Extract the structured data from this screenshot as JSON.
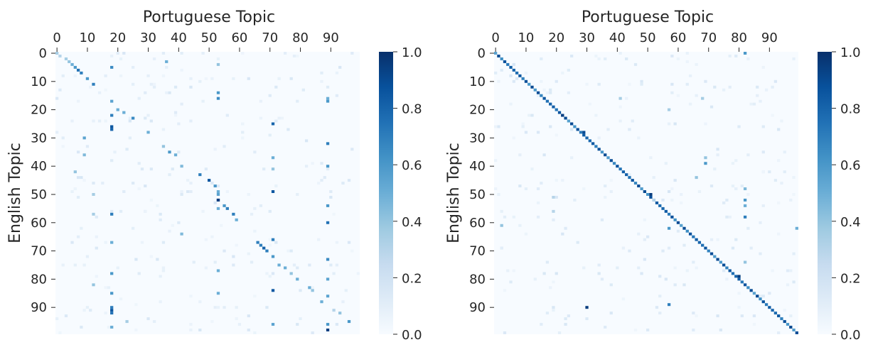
{
  "chart_data": [
    {
      "type": "heatmap",
      "title": "",
      "xlabel": "Portuguese Topic",
      "ylabel": "English Topic",
      "x_ticks": [
        "0",
        "10",
        "20",
        "30",
        "40",
        "50",
        "60",
        "70",
        "80",
        "90"
      ],
      "y_ticks": [
        "0",
        "10",
        "20",
        "30",
        "40",
        "50",
        "60",
        "70",
        "80",
        "90"
      ],
      "grid_size": 100,
      "colorbar": {
        "ticks": [
          "0.0",
          "0.2",
          "0.4",
          "0.6",
          "0.8",
          "1.0"
        ],
        "range": [
          0,
          1
        ]
      },
      "highlighted_cells": [
        [
          0,
          0,
          0.35
        ],
        [
          1,
          1,
          0.3
        ],
        [
          2,
          3,
          0.35
        ],
        [
          3,
          4,
          0.4
        ],
        [
          4,
          5,
          0.5
        ],
        [
          5,
          6,
          0.6
        ],
        [
          6,
          7,
          0.75
        ],
        [
          7,
          8,
          0.7
        ],
        [
          9,
          10,
          0.6
        ],
        [
          11,
          12,
          0.7
        ],
        [
          20,
          20,
          0.5
        ],
        [
          21,
          22,
          0.5
        ],
        [
          23,
          25,
          0.65
        ],
        [
          28,
          30,
          0.5
        ],
        [
          33,
          35,
          0.4
        ],
        [
          35,
          37,
          0.6
        ],
        [
          36,
          39,
          0.5
        ],
        [
          40,
          41,
          0.45
        ],
        [
          43,
          47,
          0.7
        ],
        [
          45,
          50,
          0.85
        ],
        [
          47,
          52,
          0.6
        ],
        [
          49,
          53,
          0.5
        ],
        [
          52,
          53,
          0.95
        ],
        [
          54,
          55,
          0.6
        ],
        [
          55,
          56,
          0.7
        ],
        [
          57,
          58,
          0.7
        ],
        [
          59,
          59,
          0.5
        ],
        [
          67,
          66,
          0.7
        ],
        [
          68,
          67,
          0.7
        ],
        [
          69,
          68,
          0.8
        ],
        [
          70,
          69,
          0.7
        ],
        [
          72,
          71,
          0.6
        ],
        [
          75,
          73,
          0.5
        ],
        [
          76,
          75,
          0.5
        ],
        [
          78,
          77,
          0.4
        ],
        [
          80,
          79,
          0.5
        ],
        [
          83,
          83,
          0.5
        ],
        [
          84,
          84,
          0.4
        ],
        [
          88,
          87,
          0.5
        ],
        [
          91,
          91,
          0.3
        ],
        [
          92,
          93,
          0.4
        ],
        [
          95,
          96,
          0.6
        ],
        [
          5,
          18,
          0.65
        ],
        [
          17,
          18,
          0.55
        ],
        [
          22,
          18,
          0.7
        ],
        [
          26,
          18,
          0.85
        ],
        [
          27,
          18,
          0.8
        ],
        [
          57,
          18,
          0.7
        ],
        [
          67,
          18,
          0.5
        ],
        [
          78,
          18,
          0.6
        ],
        [
          85,
          18,
          0.6
        ],
        [
          90,
          18,
          0.7
        ],
        [
          91,
          18,
          0.85
        ],
        [
          92,
          18,
          0.75
        ],
        [
          97,
          18,
          0.5
        ],
        [
          4,
          53,
          0.4
        ],
        [
          14,
          53,
          0.6
        ],
        [
          16,
          53,
          0.65
        ],
        [
          50,
          53,
          0.55
        ],
        [
          52,
          53,
          0.95
        ],
        [
          55,
          53,
          0.5
        ],
        [
          77,
          53,
          0.5
        ],
        [
          85,
          53,
          0.5
        ],
        [
          3,
          36,
          0.5
        ],
        [
          25,
          71,
          0.8
        ],
        [
          49,
          71,
          0.85
        ],
        [
          66,
          71,
          0.7
        ],
        [
          84,
          71,
          0.85
        ],
        [
          96,
          71,
          0.55
        ],
        [
          16,
          89,
          0.5
        ],
        [
          17,
          89,
          0.6
        ],
        [
          32,
          89,
          0.7
        ],
        [
          40,
          89,
          0.6
        ],
        [
          54,
          89,
          0.6
        ],
        [
          60,
          89,
          0.75
        ],
        [
          73,
          89,
          0.65
        ],
        [
          80,
          89,
          0.55
        ],
        [
          86,
          89,
          0.55
        ],
        [
          96,
          89,
          0.6
        ],
        [
          98,
          89,
          0.95
        ],
        [
          30,
          9,
          0.55
        ],
        [
          36,
          9,
          0.45
        ],
        [
          42,
          6,
          0.4
        ],
        [
          37,
          71,
          0.5
        ],
        [
          41,
          71,
          0.4
        ],
        [
          50,
          12,
          0.35
        ],
        [
          57,
          12,
          0.35
        ],
        [
          64,
          41,
          0.45
        ],
        [
          82,
          12,
          0.4
        ],
        [
          95,
          23,
          0.35
        ]
      ]
    },
    {
      "type": "heatmap",
      "title": "",
      "xlabel": "Portuguese Topic",
      "ylabel": "English Topic",
      "x_ticks": [
        "0",
        "10",
        "20",
        "30",
        "40",
        "50",
        "60",
        "70",
        "80",
        "90"
      ],
      "y_ticks": [
        "0",
        "10",
        "20",
        "30",
        "40",
        "50",
        "60",
        "70",
        "80",
        "90"
      ],
      "grid_size": 100,
      "colorbar": {
        "ticks": [
          "0.0",
          "0.2",
          "0.4",
          "0.6",
          "0.8",
          "1.0"
        ],
        "range": [
          0,
          1
        ]
      },
      "diagonal": true,
      "highlighted_cells": [
        [
          0,
          82,
          0.6
        ],
        [
          48,
          82,
          0.45
        ],
        [
          52,
          82,
          0.6
        ],
        [
          54,
          82,
          0.5
        ],
        [
          58,
          82,
          0.7
        ],
        [
          74,
          82,
          0.4
        ],
        [
          37,
          69,
          0.4
        ],
        [
          39,
          69,
          0.6
        ],
        [
          90,
          30,
          0.95
        ],
        [
          89,
          57,
          0.7
        ],
        [
          62,
          57,
          0.6
        ],
        [
          62,
          104,
          0.5
        ],
        [
          61,
          2,
          0.4
        ],
        [
          44,
          66,
          0.4
        ],
        [
          20,
          57,
          0.35
        ],
        [
          51,
          19,
          0.3
        ],
        [
          56,
          19,
          0.3
        ],
        [
          16,
          41,
          0.35
        ],
        [
          16,
          68,
          0.35
        ],
        [
          52,
          52,
          0.3
        ],
        [
          22,
          22,
          0.95
        ],
        [
          28,
          29,
          0.9
        ],
        [
          50,
          51,
          0.95
        ],
        [
          79,
          80,
          0.95
        ]
      ]
    }
  ]
}
